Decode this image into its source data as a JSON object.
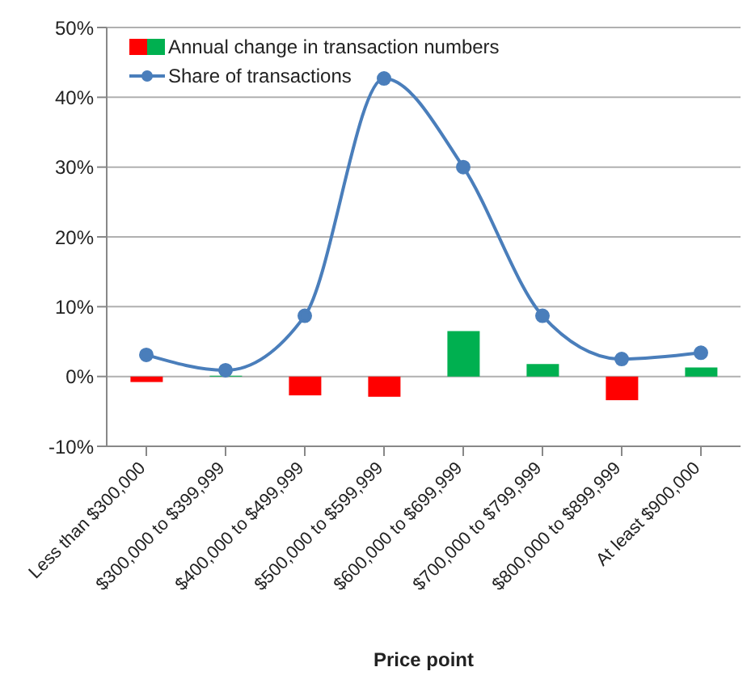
{
  "chart_data": {
    "type": "bar",
    "xlabel": "Price point",
    "categories": [
      "Less than $300,000",
      "$300,000 to $399,999",
      "$400,000 to $499,999",
      "$500,000 to $599,999",
      "$600,000 to $699,999",
      "$700,000 to $799,999",
      "$800,000 to $899,999",
      "At least $900,000"
    ],
    "series": [
      {
        "name": "Annual change in transaction numbers",
        "colors": [
          "#ff0000",
          "#00b050",
          "#ff0000",
          "#ff0000",
          "#00b050",
          "#00b050",
          "#ff0000",
          "#00b050"
        ],
        "values": [
          -0.8,
          0.1,
          -2.7,
          -2.9,
          6.5,
          1.8,
          -3.4,
          1.3
        ]
      },
      {
        "name": "Share of transactions",
        "type": "line",
        "color": "#4a7ebb",
        "marker": "circle",
        "values": [
          3.1,
          0.9,
          8.7,
          42.7,
          30.0,
          8.7,
          2.5,
          3.4
        ]
      }
    ],
    "ylim": [
      -10,
      50
    ],
    "yticks": [
      {
        "value": -10,
        "label": "-10%"
      },
      {
        "value": 0,
        "label": "0%"
      },
      {
        "value": 10,
        "label": "10%"
      },
      {
        "value": 20,
        "label": "20%"
      },
      {
        "value": 30,
        "label": "30%"
      },
      {
        "value": 40,
        "label": "40%"
      },
      {
        "value": 50,
        "label": "50%"
      }
    ],
    "grid": "y",
    "legend": "top left"
  }
}
